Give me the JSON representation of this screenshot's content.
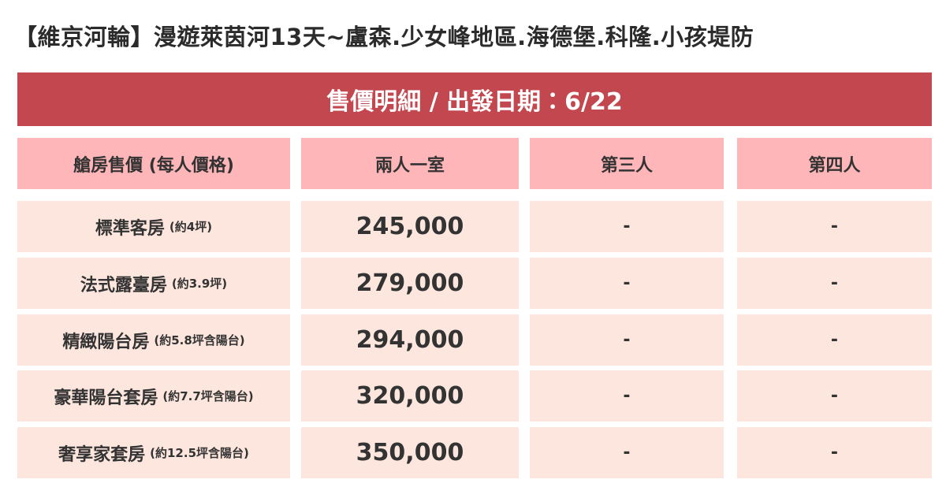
{
  "header": {
    "title": "【維京河輪】漫遊萊茵河13天~盧森.少女峰地區.海德堡.科隆.小孩堤防"
  },
  "banner": {
    "text": "售價明細 / 出發日期：6/22"
  },
  "table": {
    "columns": [
      "艙房售價 (每人價格)",
      "兩人一室",
      "第三人",
      "第四人"
    ],
    "rows": [
      {
        "name": "標準客房",
        "note": "(約4坪)",
        "cells": [
          "245,000",
          "-",
          "-"
        ]
      },
      {
        "name": "法式露臺房",
        "note": "(約3.9坪)",
        "cells": [
          "279,000",
          "-",
          "-"
        ]
      },
      {
        "name": "精緻陽台房",
        "note": "(約5.8坪含陽台)",
        "cells": [
          "294,000",
          "-",
          "-"
        ]
      },
      {
        "name": "豪華陽台套房",
        "note": "(約7.7坪含陽台)",
        "cells": [
          "320,000",
          "-",
          "-"
        ]
      },
      {
        "name": "奢享家套房",
        "note": "(約12.5坪含陽台)",
        "cells": [
          "350,000",
          "-",
          "-"
        ]
      }
    ]
  }
}
